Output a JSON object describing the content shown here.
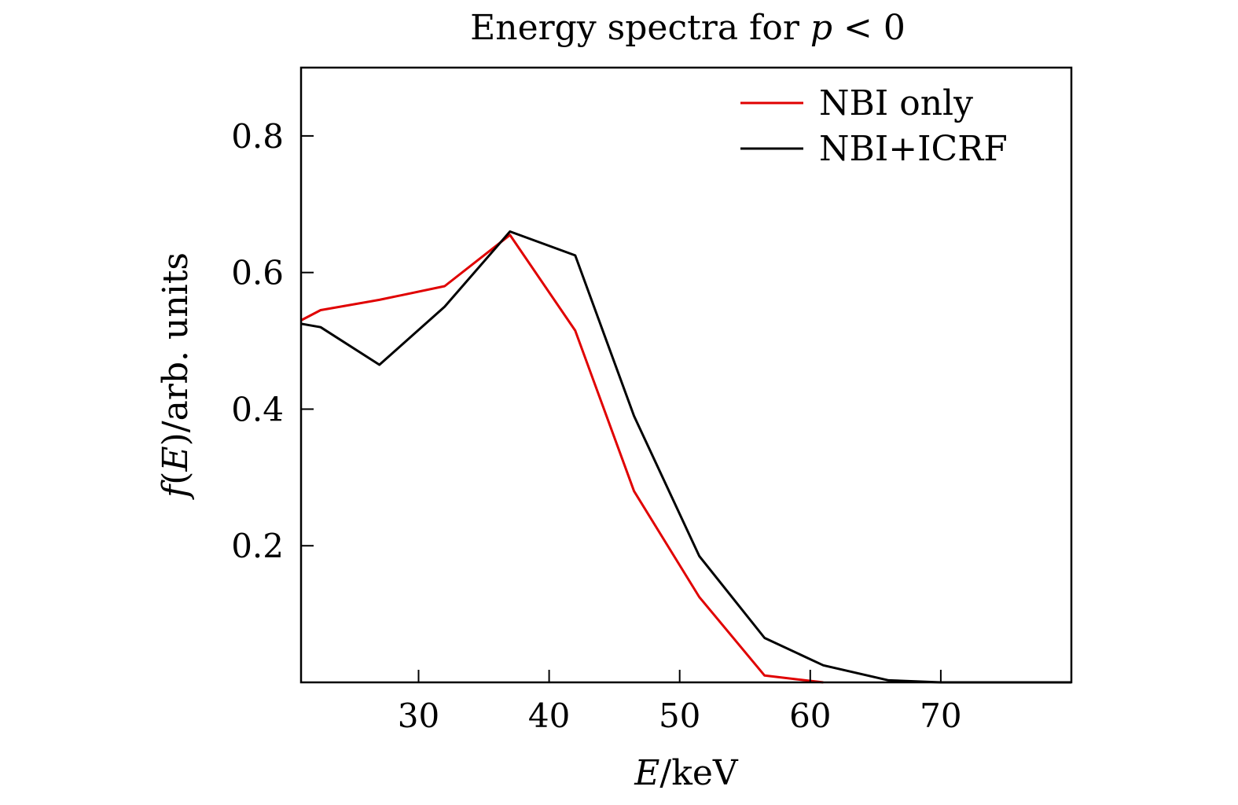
{
  "chart_data": {
    "type": "line",
    "title": "Energy spectra for p < 0",
    "title_parts": {
      "prefix": "Energy spectra for ",
      "symbol": "p",
      "suffix": " < 0"
    },
    "xlabel": "E/keV",
    "xlabel_parts": {
      "symbol": "E",
      "suffix": "/keV"
    },
    "ylabel": "f(E)/arb. units",
    "ylabel_parts": {
      "symbol": "f",
      "paren_open": "(",
      "arg": "E",
      "suffix": ")/arb. units"
    },
    "xlim": [
      21,
      80
    ],
    "ylim": [
      0,
      0.9
    ],
    "x_ticks": [
      30,
      40,
      50,
      60,
      70
    ],
    "x_tick_labels": [
      "30",
      "40",
      "50",
      "60",
      "70"
    ],
    "y_ticks": [
      0.2,
      0.4,
      0.6,
      0.8
    ],
    "y_tick_labels": [
      "0.2",
      "0.4",
      "0.6",
      "0.8"
    ],
    "grid": false,
    "legend_position": "top-right",
    "series": [
      {
        "name": "NBI only",
        "color": "#e00000",
        "x": [
          21,
          22.5,
          27,
          32,
          37,
          42,
          46.5,
          51.5,
          56.5,
          61
        ],
        "y": [
          0.53,
          0.545,
          0.56,
          0.58,
          0.655,
          0.515,
          0.28,
          0.125,
          0.01,
          0.0
        ]
      },
      {
        "name": "NBI+ICRF",
        "color": "#000000",
        "x": [
          21,
          22.5,
          27,
          32,
          37,
          42,
          46.5,
          51.5,
          56.5,
          61,
          66,
          70,
          75,
          80
        ],
        "y": [
          0.525,
          0.52,
          0.465,
          0.55,
          0.66,
          0.625,
          0.39,
          0.185,
          0.065,
          0.025,
          0.003,
          0.0,
          0.0,
          0.0
        ]
      }
    ]
  }
}
